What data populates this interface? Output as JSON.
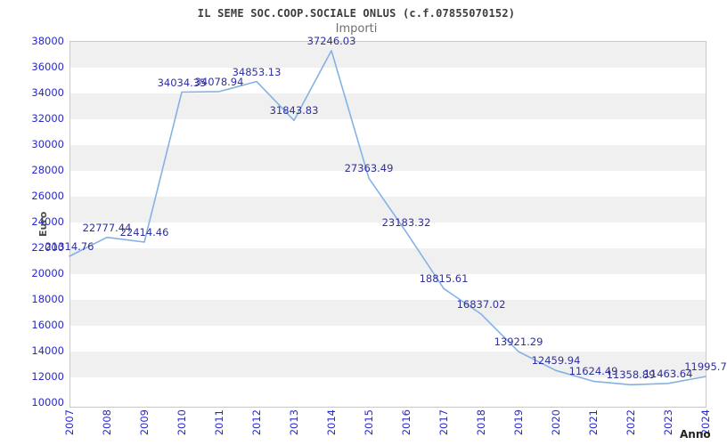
{
  "title": "IL SEME SOC.COOP.SOCIALE ONLUS (c.f.07855070152)",
  "subtitle": "Importi",
  "chart_data": {
    "type": "line",
    "title": "IL SEME SOC.COOP.SOCIALE ONLUS (c.f.07855070152)",
    "subtitle": "Importi",
    "xlabel": "Anno",
    "ylabel": "Euro",
    "x": [
      2007,
      2008,
      2009,
      2010,
      2011,
      2012,
      2013,
      2014,
      2015,
      2016,
      2017,
      2018,
      2019,
      2020,
      2021,
      2022,
      2023,
      2024
    ],
    "values": [
      21314.76,
      22777.44,
      22414.46,
      34034.35,
      34078.94,
      34853.13,
      31843.83,
      37246.03,
      27363.49,
      23183.32,
      18815.61,
      16837.02,
      13921.29,
      12459.94,
      11624.49,
      11358.89,
      11463.64,
      11995.7
    ],
    "point_labels": [
      "21314.76",
      "22777.44",
      "22414.46",
      "34034.35",
      "34078.94",
      "34853.13",
      "31843.83",
      "37246.03",
      "27363.49",
      "23183.32",
      "18815.61",
      "16837.02",
      "13921.29",
      "12459.94",
      "11624.49",
      "11358.89",
      "11463.64",
      "11995.7"
    ],
    "ylim": [
      10000,
      38000
    ],
    "ytick_step": 2000,
    "ytick_labels": [
      "38000",
      "36000",
      "34000",
      "32000",
      "30000",
      "28000",
      "26000",
      "24000",
      "22000",
      "20000",
      "18000",
      "16000",
      "14000",
      "12000",
      "10000"
    ],
    "grid": "horizontal-alternating-bands",
    "legend": "none",
    "colors": {
      "line": "#84b2e4",
      "point_label": "#30309e",
      "tick_label": "#2828cd",
      "band_gray": "#f0f0f0",
      "band_white": "#ffffff",
      "plot_border": "#c9c9c9",
      "title": "#3c3c3c",
      "subtitle": "#6f6f6f"
    }
  }
}
